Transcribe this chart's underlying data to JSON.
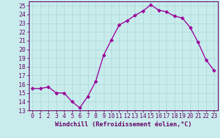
{
  "x": [
    0,
    1,
    2,
    3,
    4,
    5,
    6,
    7,
    8,
    9,
    10,
    11,
    12,
    13,
    14,
    15,
    16,
    17,
    18,
    19,
    20,
    21,
    22,
    23
  ],
  "y": [
    15.5,
    15.5,
    15.7,
    15.0,
    15.0,
    14.0,
    13.3,
    14.6,
    16.3,
    19.3,
    21.1,
    22.8,
    23.3,
    23.9,
    24.4,
    25.1,
    24.5,
    24.3,
    23.8,
    23.6,
    22.5,
    20.8,
    18.8,
    17.6
  ],
  "line_color": "#990099",
  "marker": "D",
  "marker_size": 2.5,
  "bg_color": "#c8ecec",
  "grid_color": "#b0d8d8",
  "xlabel": "Windchill (Refroidissement éolien,°C)",
  "xlim": [
    -0.5,
    23.5
  ],
  "ylim": [
    13,
    25.5
  ],
  "yticks": [
    13,
    14,
    15,
    16,
    17,
    18,
    19,
    20,
    21,
    22,
    23,
    24,
    25
  ],
  "xticks": [
    0,
    1,
    2,
    3,
    4,
    5,
    6,
    7,
    8,
    9,
    10,
    11,
    12,
    13,
    14,
    15,
    16,
    17,
    18,
    19,
    20,
    21,
    22,
    23
  ],
  "xlabel_fontsize": 6.5,
  "tick_fontsize": 6,
  "line_width": 1.0
}
